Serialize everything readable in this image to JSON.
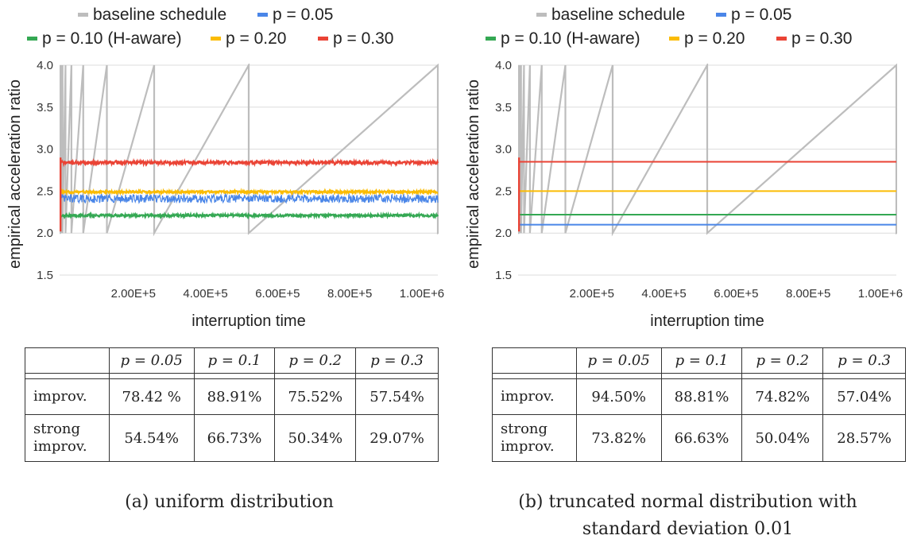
{
  "chart_data": [
    {
      "type": "line",
      "panel": "a",
      "xlabel": "interruption time",
      "ylabel": "empirical acceleration ratio",
      "xlim": [
        0,
        1048576
      ],
      "ylim": [
        1.5,
        4.0
      ],
      "yticks": [
        "1.5",
        "2.0",
        "2.5",
        "3.0",
        "3.5",
        "4.0"
      ],
      "xticks": [
        "2.00E+5",
        "4.00E+5",
        "6.00E+5",
        "8.00E+5",
        "1.00E+6"
      ],
      "legend": [
        "baseline schedule",
        "p = 0.05",
        "p = 0.10 (H-aware)",
        "p = 0.20",
        "p = 0.30"
      ],
      "grid": "horizontal",
      "series": [
        {
          "name": "baseline schedule",
          "color": "#bdbdbd",
          "style": "sawtooth",
          "low": 2.0,
          "high": 4.0,
          "period_multiplier": 2,
          "start": 1024
        },
        {
          "name": "p = 0.05",
          "color": "#4a86e8",
          "mean": 2.41,
          "noise": 0.05
        },
        {
          "name": "p = 0.10 (H-aware)",
          "color": "#34a853",
          "mean": 2.21,
          "noise": 0.015
        },
        {
          "name": "p = 0.20",
          "color": "#fbbc04",
          "mean": 2.49,
          "noise": 0.015
        },
        {
          "name": "p = 0.30",
          "color": "#ea4335",
          "mean": 2.84,
          "noise": 0.02
        }
      ]
    },
    {
      "type": "line",
      "panel": "b",
      "xlabel": "interruption time",
      "ylabel": "empirical acceleration ratio",
      "xlim": [
        0,
        1048576
      ],
      "ylim": [
        1.5,
        4.0
      ],
      "yticks": [
        "1.5",
        "2.0",
        "2.5",
        "3.0",
        "3.5",
        "4.0"
      ],
      "xticks": [
        "2.00E+5",
        "4.00E+5",
        "6.00E+5",
        "8.00E+5",
        "1.00E+6"
      ],
      "legend": [
        "baseline schedule",
        "p = 0.05",
        "p = 0.10 (H-aware)",
        "p = 0.20",
        "p = 0.30"
      ],
      "grid": "horizontal",
      "series": [
        {
          "name": "baseline schedule",
          "color": "#bdbdbd",
          "style": "sawtooth",
          "low": 2.0,
          "high": 4.0,
          "period_multiplier": 2,
          "start": 1024
        },
        {
          "name": "p = 0.05",
          "color": "#4a86e8",
          "mean": 2.1,
          "noise": 0.0
        },
        {
          "name": "p = 0.10 (H-aware)",
          "color": "#34a853",
          "mean": 2.22,
          "noise": 0.0
        },
        {
          "name": "p = 0.20",
          "color": "#fbbc04",
          "mean": 2.5,
          "noise": 0.0
        },
        {
          "name": "p = 0.30",
          "color": "#ea4335",
          "mean": 2.85,
          "noise": 0.0
        }
      ]
    }
  ],
  "tables": [
    {
      "panel": "a",
      "headers": [
        "",
        "p = 0.05",
        "p = 0.1",
        "p = 0.2",
        "p = 0.3"
      ],
      "rows": [
        {
          "label": "improv.",
          "values": [
            "78.42 %",
            "88.91%",
            "75.52%",
            "57.54%"
          ]
        },
        {
          "label_line1": "strong",
          "label_line2": "improv.",
          "values": [
            "54.54%",
            "66.73%",
            "50.34%",
            "29.07%"
          ]
        }
      ]
    },
    {
      "panel": "b",
      "headers": [
        "",
        "p = 0.05",
        "p = 0.1",
        "p = 0.2",
        "p = 0.3"
      ],
      "rows": [
        {
          "label": "improv.",
          "values": [
            "94.50%",
            "88.81%",
            "74.82%",
            "57.04%"
          ]
        },
        {
          "label_line1": "strong",
          "label_line2": "improv.",
          "values": [
            "73.82%",
            "66.63%",
            "50.04%",
            "28.57%"
          ]
        }
      ]
    }
  ],
  "captions": [
    {
      "line1": "(a) uniform distribution",
      "line2": ""
    },
    {
      "line1": "(b) truncated normal distribution with",
      "line2": "standard deviation 0.01"
    }
  ]
}
